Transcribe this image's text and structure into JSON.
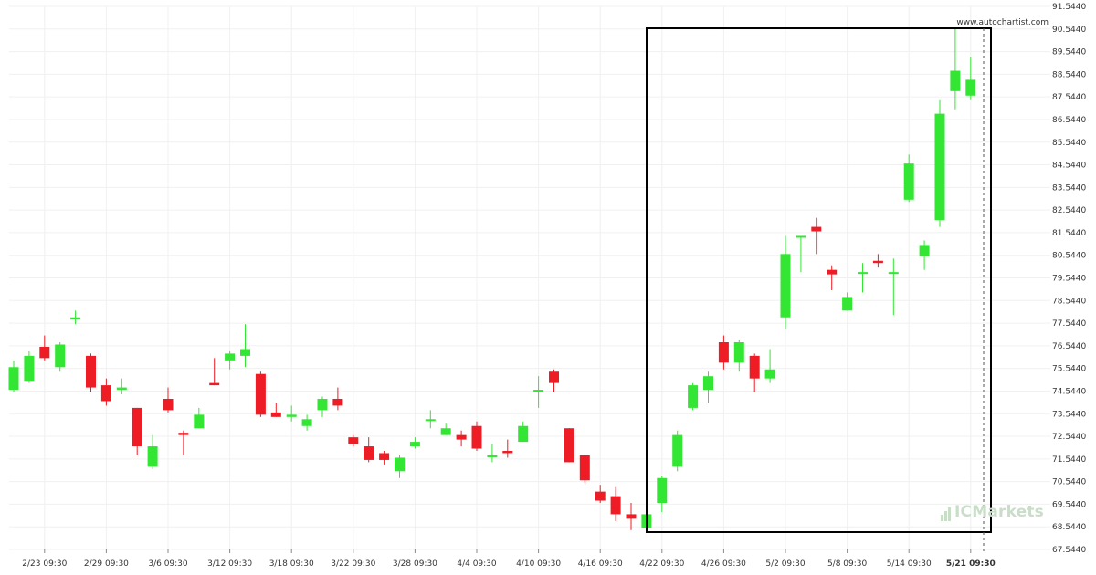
{
  "watermark": "www.autochartist.com",
  "brand": {
    "prefix": "IC",
    "suffix": "Markets"
  },
  "colors": {
    "bull": "#33e633",
    "bear": "#ee1c25",
    "box": "#000000",
    "grid": "#f0f0f0"
  },
  "chart_data": {
    "type": "candlestick",
    "x_tick_labels": [
      "2/23 09:30",
      "2/29 09:30",
      "3/6 09:30",
      "3/12 09:30",
      "3/18 09:30",
      "3/22 09:30",
      "3/28 09:30",
      "4/4 09:30",
      "4/10 09:30",
      "4/16 09:30",
      "4/22 09:30",
      "4/26 09:30",
      "5/2 09:30",
      "5/8 09:30",
      "5/14 09:30",
      "5/21 09:30"
    ],
    "y_ticks": [
      "67.5440",
      "68.5440",
      "69.5440",
      "70.5440",
      "71.5440",
      "72.5440",
      "73.5440",
      "74.5440",
      "75.5440",
      "76.5440",
      "77.5440",
      "78.5440",
      "79.5440",
      "80.5440",
      "81.5440",
      "82.5440",
      "83.5440",
      "84.5440",
      "85.5440",
      "86.5440",
      "87.5440",
      "88.5440",
      "89.5440",
      "90.5440",
      "91.5440"
    ],
    "ylim": [
      67.544,
      91.544
    ],
    "candles": [
      {
        "o": 74.6,
        "h": 75.9,
        "l": 74.5,
        "c": 75.6
      },
      {
        "o": 75.0,
        "h": 76.3,
        "l": 74.9,
        "c": 76.1
      },
      {
        "o": 76.5,
        "h": 77.0,
        "l": 75.9,
        "c": 76.0
      },
      {
        "o": 75.6,
        "h": 76.7,
        "l": 75.4,
        "c": 76.6
      },
      {
        "o": 77.7,
        "h": 78.1,
        "l": 77.5,
        "c": 77.8
      },
      {
        "o": 76.1,
        "h": 76.2,
        "l": 74.5,
        "c": 74.7
      },
      {
        "o": 74.8,
        "h": 75.1,
        "l": 73.9,
        "c": 74.1
      },
      {
        "o": 74.6,
        "h": 75.1,
        "l": 74.4,
        "c": 74.7
      },
      {
        "o": 73.8,
        "h": 73.8,
        "l": 71.7,
        "c": 72.1
      },
      {
        "o": 71.2,
        "h": 72.6,
        "l": 71.1,
        "c": 72.1
      },
      {
        "o": 74.2,
        "h": 74.7,
        "l": 73.6,
        "c": 73.7
      },
      {
        "o": 72.7,
        "h": 72.8,
        "l": 71.7,
        "c": 72.6
      },
      {
        "o": 72.9,
        "h": 73.8,
        "l": 72.9,
        "c": 73.5
      },
      {
        "o": 74.9,
        "h": 76.0,
        "l": 74.8,
        "c": 74.8
      },
      {
        "o": 75.9,
        "h": 76.3,
        "l": 75.5,
        "c": 76.2
      },
      {
        "o": 76.1,
        "h": 77.5,
        "l": 75.6,
        "c": 76.4
      },
      {
        "o": 75.3,
        "h": 75.4,
        "l": 73.4,
        "c": 73.5
      },
      {
        "o": 73.6,
        "h": 74.0,
        "l": 73.4,
        "c": 73.4
      },
      {
        "o": 73.4,
        "h": 73.9,
        "l": 73.2,
        "c": 73.5
      },
      {
        "o": 73.0,
        "h": 73.5,
        "l": 72.8,
        "c": 73.3
      },
      {
        "o": 73.7,
        "h": 74.3,
        "l": 73.4,
        "c": 74.2
      },
      {
        "o": 74.2,
        "h": 74.7,
        "l": 73.7,
        "c": 73.9
      },
      {
        "o": 72.5,
        "h": 72.6,
        "l": 72.1,
        "c": 72.2
      },
      {
        "o": 72.1,
        "h": 72.5,
        "l": 71.4,
        "c": 71.5
      },
      {
        "o": 71.8,
        "h": 71.9,
        "l": 71.3,
        "c": 71.5
      },
      {
        "o": 71.0,
        "h": 71.7,
        "l": 70.7,
        "c": 71.6
      },
      {
        "o": 72.1,
        "h": 72.5,
        "l": 72.0,
        "c": 72.3
      },
      {
        "o": 73.3,
        "h": 73.7,
        "l": 72.9,
        "c": 73.3
      },
      {
        "o": 72.6,
        "h": 73.1,
        "l": 72.6,
        "c": 72.9
      },
      {
        "o": 72.6,
        "h": 72.8,
        "l": 72.1,
        "c": 72.4
      },
      {
        "o": 73.0,
        "h": 73.2,
        "l": 71.9,
        "c": 72.0
      },
      {
        "o": 71.7,
        "h": 72.2,
        "l": 71.4,
        "c": 71.7
      },
      {
        "o": 71.9,
        "h": 72.4,
        "l": 71.6,
        "c": 71.8
      },
      {
        "o": 72.3,
        "h": 73.2,
        "l": 72.3,
        "c": 73.0
      },
      {
        "o": 74.6,
        "h": 75.2,
        "l": 73.8,
        "c": 74.6
      },
      {
        "o": 75.4,
        "h": 75.5,
        "l": 74.5,
        "c": 74.9
      },
      {
        "o": 72.9,
        "h": 72.9,
        "l": 71.4,
        "c": 71.4
      },
      {
        "o": 71.7,
        "h": 71.7,
        "l": 70.5,
        "c": 70.6
      },
      {
        "o": 70.1,
        "h": 70.4,
        "l": 69.6,
        "c": 69.7
      },
      {
        "o": 69.9,
        "h": 70.3,
        "l": 68.8,
        "c": 69.1
      },
      {
        "o": 69.1,
        "h": 69.6,
        "l": 68.4,
        "c": 68.9
      },
      {
        "o": 68.5,
        "h": 69.2,
        "l": 68.5,
        "c": 69.1
      },
      {
        "o": 69.6,
        "h": 70.8,
        "l": 69.2,
        "c": 70.7
      },
      {
        "o": 71.2,
        "h": 72.8,
        "l": 71.0,
        "c": 72.6
      },
      {
        "o": 73.8,
        "h": 74.9,
        "l": 73.7,
        "c": 74.8
      },
      {
        "o": 74.6,
        "h": 75.4,
        "l": 74.0,
        "c": 75.2
      },
      {
        "o": 76.7,
        "h": 77.0,
        "l": 75.5,
        "c": 75.8
      },
      {
        "o": 75.8,
        "h": 76.8,
        "l": 75.4,
        "c": 76.7
      },
      {
        "o": 76.1,
        "h": 76.2,
        "l": 74.5,
        "c": 75.1
      },
      {
        "o": 75.1,
        "h": 76.4,
        "l": 74.9,
        "c": 75.5
      },
      {
        "o": 77.8,
        "h": 81.4,
        "l": 77.3,
        "c": 80.6
      },
      {
        "o": 81.4,
        "h": 81.4,
        "l": 79.8,
        "c": 81.4
      },
      {
        "o": 81.8,
        "h": 82.2,
        "l": 80.6,
        "c": 81.6
      },
      {
        "o": 79.9,
        "h": 80.1,
        "l": 79.0,
        "c": 79.7
      },
      {
        "o": 78.1,
        "h": 78.9,
        "l": 78.1,
        "c": 78.7
      },
      {
        "o": 79.8,
        "h": 80.2,
        "l": 78.9,
        "c": 79.8
      },
      {
        "o": 80.3,
        "h": 80.6,
        "l": 80.0,
        "c": 80.2
      },
      {
        "o": 79.8,
        "h": 80.4,
        "l": 77.9,
        "c": 79.8
      },
      {
        "o": 83.0,
        "h": 85.0,
        "l": 82.9,
        "c": 84.6
      },
      {
        "o": 80.5,
        "h": 81.2,
        "l": 79.9,
        "c": 81.0
      },
      {
        "o": 82.1,
        "h": 87.4,
        "l": 81.8,
        "c": 86.8
      },
      {
        "o": 87.8,
        "h": 90.6,
        "l": 87.0,
        "c": 88.7
      },
      {
        "o": 87.6,
        "h": 89.3,
        "l": 87.4,
        "c": 88.3
      }
    ]
  }
}
